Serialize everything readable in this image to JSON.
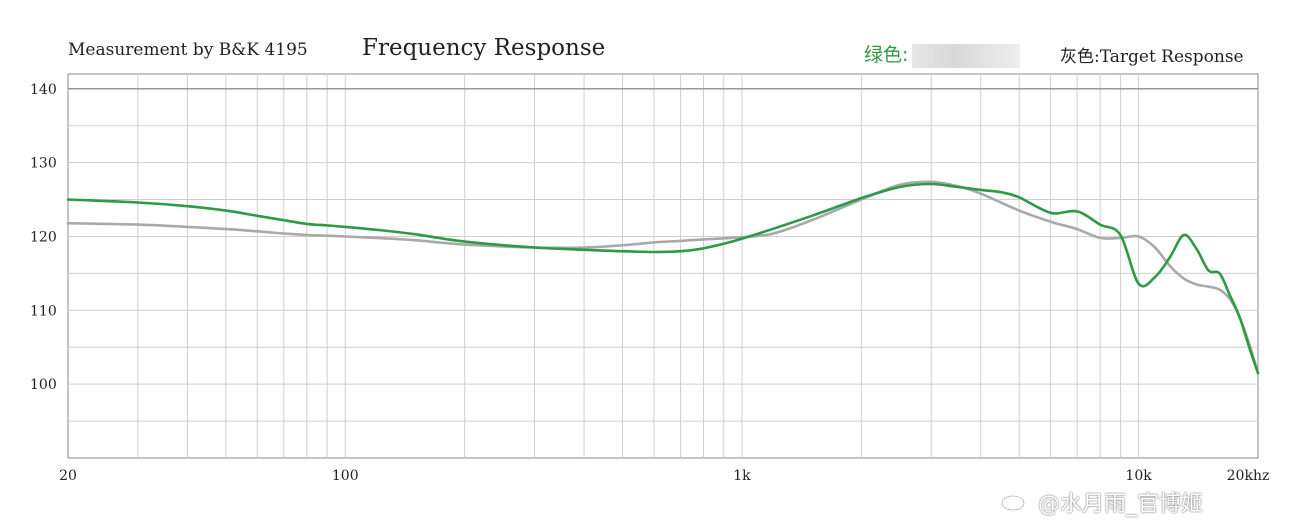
{
  "header": {
    "measurement": "Measurement by B&K 4195",
    "title": "Frequency Response",
    "legend_green": "绿色:",
    "legend_gray": "灰色:Target Response"
  },
  "watermark": "@水月雨_官博姬",
  "colors": {
    "green": "#2e9a44",
    "gray": "#a9a9a9",
    "grid": "#cfcfcf",
    "axis": "#888888"
  },
  "chart_data": {
    "type": "line",
    "title": "Frequency Response",
    "xscale": "log",
    "xlim": [
      20,
      20000
    ],
    "ylim": [
      90,
      142
    ],
    "x_tick_labels": [
      {
        "value": 20,
        "label": "20"
      },
      {
        "value": 100,
        "label": "100"
      },
      {
        "value": 1000,
        "label": "1k"
      },
      {
        "value": 10000,
        "label": "10k"
      },
      {
        "value": 20000,
        "label": "20khz"
      }
    ],
    "y_tick_labels": [
      {
        "value": 140,
        "label": "140"
      },
      {
        "value": 130,
        "label": "130"
      },
      {
        "value": 120,
        "label": "120"
      },
      {
        "value": 110,
        "label": "110"
      },
      {
        "value": 100,
        "label": "100"
      }
    ],
    "grid": true,
    "legend": "top-right",
    "series": [
      {
        "color": "#2e9a44",
        "x": [
          20,
          30,
          40,
          50,
          60,
          70,
          80,
          90,
          100,
          120,
          150,
          200,
          300,
          400,
          500,
          600,
          700,
          800,
          1000,
          1500,
          2000,
          2500,
          3000,
          3500,
          4000,
          4500,
          5000,
          6000,
          7000,
          8000,
          9000,
          10000,
          11000,
          12000,
          13000,
          14000,
          15000,
          16000,
          17000,
          18000,
          19000,
          20000
        ],
        "y": [
          125,
          124.6,
          124.1,
          123.5,
          122.8,
          122.2,
          121.7,
          121.5,
          121.3,
          120.9,
          120.3,
          119.3,
          118.5,
          118.2,
          118.0,
          117.9,
          118.0,
          118.4,
          119.7,
          122.8,
          125.2,
          126.7,
          127.1,
          126.7,
          126.3,
          126.0,
          125.3,
          123.2,
          123.4,
          121.6,
          120.2,
          113.6,
          114.5,
          117.2,
          120.2,
          118.3,
          115.4,
          115.0,
          112.0,
          109.0,
          105.0,
          101.5
        ]
      },
      {
        "name": "Target Response",
        "color": "#a9a9a9",
        "x": [
          20,
          30,
          40,
          50,
          60,
          70,
          80,
          90,
          100,
          120,
          150,
          200,
          300,
          400,
          500,
          600,
          700,
          800,
          1000,
          1200,
          1500,
          2000,
          2500,
          3000,
          3500,
          4000,
          5000,
          6000,
          7000,
          8000,
          9000,
          10000,
          11000,
          12000,
          13000,
          14000,
          15000,
          16000,
          17000,
          18000,
          19000,
          20000
        ],
        "y": [
          121.8,
          121.6,
          121.3,
          121.0,
          120.7,
          120.4,
          120.2,
          120.1,
          120.0,
          119.8,
          119.5,
          118.9,
          118.5,
          118.5,
          118.8,
          119.2,
          119.4,
          119.6,
          119.9,
          120.4,
          122.2,
          125.0,
          127.0,
          127.4,
          126.8,
          125.8,
          123.5,
          122.0,
          121.0,
          119.8,
          119.8,
          120.0,
          118.5,
          116.0,
          114.3,
          113.5,
          113.2,
          112.8,
          111.5,
          109.0,
          105.5,
          101.5
        ]
      }
    ]
  }
}
